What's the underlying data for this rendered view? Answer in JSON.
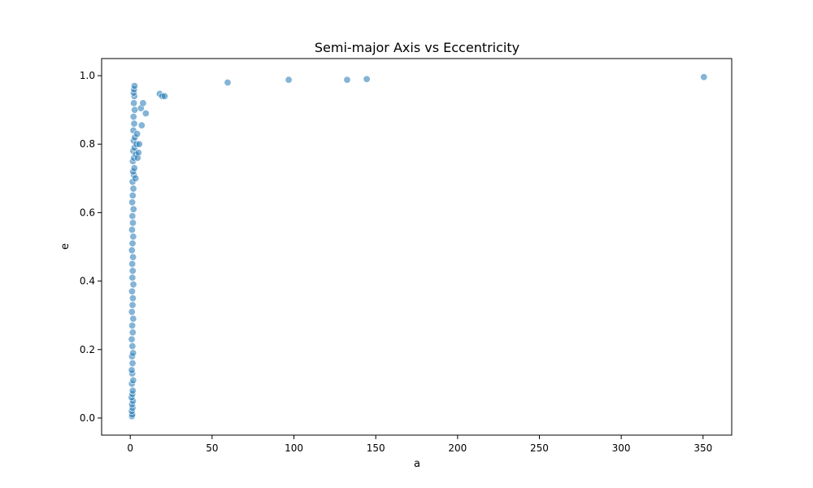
{
  "chart_data": {
    "type": "scatter",
    "title": "Semi-major Axis vs Eccentricity",
    "xlabel": "a",
    "ylabel": "e",
    "xlim": [
      -17.5,
      367.5
    ],
    "ylim": [
      -0.05,
      1.05
    ],
    "x_ticks": [
      0,
      50,
      100,
      150,
      200,
      250,
      300,
      350
    ],
    "y_ticks": [
      0.0,
      0.2,
      0.4,
      0.6,
      0.8,
      1.0
    ],
    "x_tick_labels": [
      "0",
      "50",
      "100",
      "150",
      "200",
      "250",
      "300",
      "350"
    ],
    "y_tick_labels": [
      "0.0",
      "0.2",
      "0.4",
      "0.6",
      "0.8",
      "1.0"
    ],
    "grid": false,
    "marker_color": "#1f77b4",
    "cluster": {
      "description_x_range": [
        0.5,
        4.5
      ],
      "e_range": [
        0.0,
        0.97
      ]
    },
    "points": [
      {
        "x": 1.0,
        "y": 0.005
      },
      {
        "x": 1.2,
        "y": 0.01
      },
      {
        "x": 0.9,
        "y": 0.02
      },
      {
        "x": 1.4,
        "y": 0.03
      },
      {
        "x": 1.1,
        "y": 0.04
      },
      {
        "x": 1.6,
        "y": 0.05
      },
      {
        "x": 0.8,
        "y": 0.06
      },
      {
        "x": 1.3,
        "y": 0.07
      },
      {
        "x": 1.5,
        "y": 0.08
      },
      {
        "x": 1.0,
        "y": 0.1
      },
      {
        "x": 1.8,
        "y": 0.11
      },
      {
        "x": 1.2,
        "y": 0.13
      },
      {
        "x": 0.9,
        "y": 0.14
      },
      {
        "x": 1.4,
        "y": 0.16
      },
      {
        "x": 1.1,
        "y": 0.18
      },
      {
        "x": 1.7,
        "y": 0.19
      },
      {
        "x": 1.3,
        "y": 0.21
      },
      {
        "x": 0.9,
        "y": 0.23
      },
      {
        "x": 1.5,
        "y": 0.25
      },
      {
        "x": 1.2,
        "y": 0.27
      },
      {
        "x": 1.8,
        "y": 0.29
      },
      {
        "x": 1.0,
        "y": 0.31
      },
      {
        "x": 1.4,
        "y": 0.33
      },
      {
        "x": 1.6,
        "y": 0.35
      },
      {
        "x": 1.1,
        "y": 0.37
      },
      {
        "x": 1.9,
        "y": 0.39
      },
      {
        "x": 1.3,
        "y": 0.41
      },
      {
        "x": 1.5,
        "y": 0.43
      },
      {
        "x": 1.2,
        "y": 0.45
      },
      {
        "x": 1.7,
        "y": 0.47
      },
      {
        "x": 1.0,
        "y": 0.49
      },
      {
        "x": 1.4,
        "y": 0.51
      },
      {
        "x": 1.8,
        "y": 0.53
      },
      {
        "x": 1.1,
        "y": 0.55
      },
      {
        "x": 1.6,
        "y": 0.57
      },
      {
        "x": 1.3,
        "y": 0.59
      },
      {
        "x": 2.0,
        "y": 0.61
      },
      {
        "x": 1.2,
        "y": 0.63
      },
      {
        "x": 1.5,
        "y": 0.65
      },
      {
        "x": 1.9,
        "y": 0.67
      },
      {
        "x": 1.4,
        "y": 0.69
      },
      {
        "x": 2.2,
        "y": 0.71
      },
      {
        "x": 1.7,
        "y": 0.72
      },
      {
        "x": 2.5,
        "y": 0.73
      },
      {
        "x": 1.6,
        "y": 0.75
      },
      {
        "x": 2.3,
        "y": 0.76
      },
      {
        "x": 1.8,
        "y": 0.78
      },
      {
        "x": 2.6,
        "y": 0.79
      },
      {
        "x": 2.1,
        "y": 0.81
      },
      {
        "x": 2.8,
        "y": 0.82
      },
      {
        "x": 1.9,
        "y": 0.84
      },
      {
        "x": 2.4,
        "y": 0.86
      },
      {
        "x": 2.0,
        "y": 0.88
      },
      {
        "x": 2.7,
        "y": 0.9
      },
      {
        "x": 2.2,
        "y": 0.92
      },
      {
        "x": 2.5,
        "y": 0.94
      },
      {
        "x": 2.1,
        "y": 0.95
      },
      {
        "x": 2.3,
        "y": 0.96
      },
      {
        "x": 2.6,
        "y": 0.97
      },
      {
        "x": 3.2,
        "y": 0.7
      },
      {
        "x": 3.5,
        "y": 0.77
      },
      {
        "x": 3.8,
        "y": 0.8
      },
      {
        "x": 4.2,
        "y": 0.83
      },
      {
        "x": 4.5,
        "y": 0.76
      },
      {
        "x": 5.5,
        "y": 0.8
      },
      {
        "x": 5.0,
        "y": 0.775
      },
      {
        "x": 6.5,
        "y": 0.905
      },
      {
        "x": 7.0,
        "y": 0.855
      },
      {
        "x": 7.8,
        "y": 0.92
      },
      {
        "x": 9.5,
        "y": 0.89
      },
      {
        "x": 18.0,
        "y": 0.947
      },
      {
        "x": 19.5,
        "y": 0.94
      },
      {
        "x": 21.0,
        "y": 0.94
      },
      {
        "x": 59.5,
        "y": 0.98
      },
      {
        "x": 96.8,
        "y": 0.988
      },
      {
        "x": 132.5,
        "y": 0.988
      },
      {
        "x": 144.5,
        "y": 0.99
      },
      {
        "x": 350.5,
        "y": 0.996
      }
    ]
  }
}
